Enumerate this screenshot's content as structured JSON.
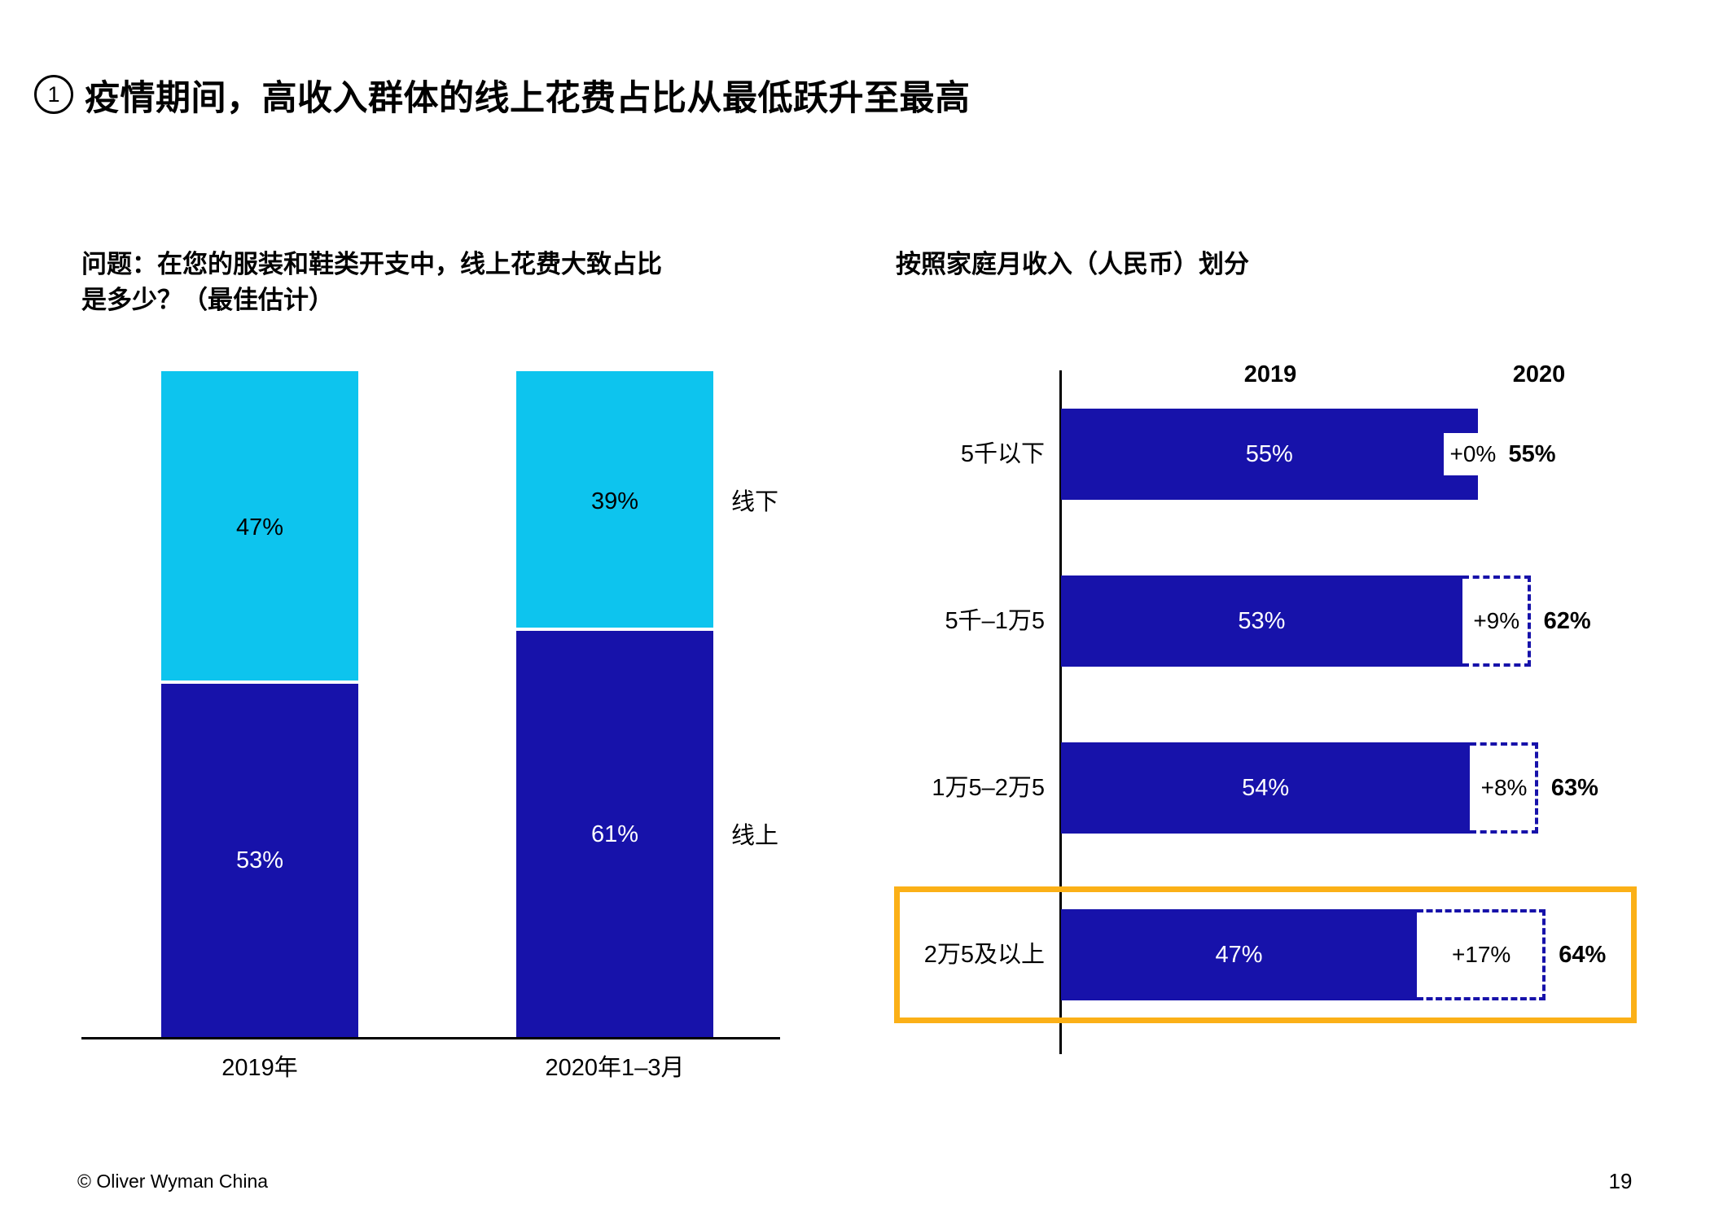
{
  "slide": {
    "badge": "1",
    "title": "疫情期间，高收入群体的线上花费占比从最低跃升至最高",
    "footer": "© Oliver Wyman China",
    "page_number": "19"
  },
  "colors": {
    "dark_blue": "#1712aa",
    "cyan": "#0dc4ee",
    "highlight_orange": "#fbb017",
    "axis_black": "#000000"
  },
  "chart_data": [
    {
      "type": "bar",
      "subtype": "stacked-column",
      "title": "问题：在您的服装和鞋类开支中，线上花费大致占比\n是多少？（最佳估计）",
      "categories": [
        "2019年",
        "2020年1–3月"
      ],
      "series": [
        {
          "name": "线下",
          "color": "#0dc4ee",
          "label_color": "#000000",
          "values": [
            47,
            39
          ]
        },
        {
          "name": "线上",
          "color": "#1712aa",
          "label_color": "#ffffff",
          "values": [
            53,
            61
          ]
        }
      ],
      "value_suffix": "%",
      "ylim": [
        0,
        100
      ],
      "grid": false,
      "series_label_position": "right"
    },
    {
      "type": "bar",
      "subtype": "horizontal-growth-bar",
      "title": "按照家庭月收入（人民币）划分",
      "col_headers": [
        "2019",
        "2020"
      ],
      "categories": [
        "5千以下",
        "5千–1万5",
        "1万5–2万5",
        "2万5及以上"
      ],
      "values_2019": [
        55,
        53,
        54,
        47
      ],
      "growth_labels": [
        "+0%",
        "+9%",
        "+8%",
        "+17%"
      ],
      "values_2020": [
        55,
        62,
        63,
        64
      ],
      "value_suffix": "%",
      "xlim": [
        0,
        100
      ],
      "bar_color": "#1712aa",
      "dashed_color": "#1712aa",
      "highlight_index": 3,
      "highlight_color": "#fbb017"
    }
  ]
}
